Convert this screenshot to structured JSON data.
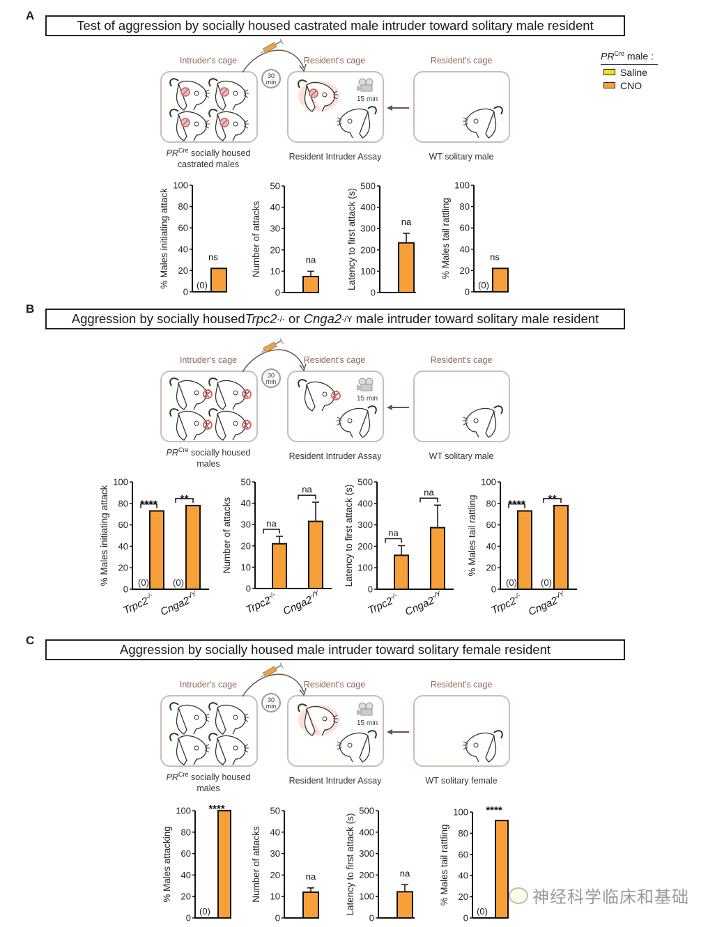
{
  "colors": {
    "saline": "#f5e11a",
    "cno": "#f7a03a",
    "cage_border": "#c9bdb8",
    "cage_label": "#8a6a58",
    "arrow": "#6b5248"
  },
  "legend": {
    "header_italic": "PR",
    "header_sup": "Cre",
    "header_rest": " male :",
    "items": [
      {
        "label": "Saline",
        "color": "#f5e11a"
      },
      {
        "label": "CNO",
        "color": "#f7a03a"
      }
    ]
  },
  "panels": [
    {
      "letter": "A",
      "title": "Test of aggression by socially housed castrated male intruder toward solitary male resident",
      "schematic": {
        "intruder_cage_label": "Intruder's cage",
        "resident_cage_label": "Resident's cage",
        "wt_cage_label": "Resident's cage",
        "timer_value": "30",
        "timer_unit": "min",
        "camera_duration": "15 min",
        "intruder_caption_italic": "PR",
        "intruder_caption_sup": "Cre",
        "intruder_caption_rest": " socially housed",
        "intruder_caption_line2": "castrated males",
        "assay_caption": "Resident Intruder Assay",
        "wt_caption": "WT solitary male"
      }
    },
    {
      "letter": "B",
      "title_parts": [
        "Aggression by socially housed ",
        "Trpc2",
        "-/-",
        " or ",
        "Cnga2",
        "-/Y",
        " male intruder toward solitary male resident"
      ],
      "schematic": {
        "intruder_cage_label": "Intruder's cage",
        "resident_cage_label": "Resident's cage",
        "wt_cage_label": "Resident's cage",
        "timer_value": "30",
        "timer_unit": "min",
        "camera_duration": "15 min",
        "intruder_caption_italic": "PR",
        "intruder_caption_sup": "Cre",
        "intruder_caption_rest": " socially housed",
        "intruder_caption_line2": "males",
        "assay_caption": "Resident Intruder Assay",
        "wt_caption": "WT solitary male"
      }
    },
    {
      "letter": "C",
      "title": "Aggression by socially housed male intruder toward solitary female resident",
      "schematic": {
        "intruder_cage_label": "Intruder's cage",
        "resident_cage_label": "Resident's cage",
        "wt_cage_label": "Resident's cage",
        "timer_value": "30",
        "timer_unit": "min",
        "camera_duration": "15 min",
        "intruder_caption_italic": "PR",
        "intruder_caption_sup": "Cre",
        "intruder_caption_rest": " socially housed",
        "intruder_caption_line2": "males",
        "assay_caption": "Resident Intruder Assay",
        "wt_caption": "WT solitary female"
      }
    }
  ],
  "chart_data": [
    {
      "panel": "A",
      "type": "bar",
      "ylabel": "% Males initiating attack",
      "ylim": [
        0,
        100
      ],
      "yticks": [
        0,
        20,
        40,
        60,
        80,
        100
      ],
      "groups": [
        {
          "category": "",
          "saline": 0,
          "cno": 22,
          "cno_err": null,
          "saline_label": "(0)",
          "sig": "ns",
          "bracket": false
        }
      ]
    },
    {
      "panel": "A",
      "type": "bar",
      "ylabel": "Number of attacks",
      "ylim": [
        0,
        50
      ],
      "yticks": [
        0,
        10,
        20,
        30,
        40,
        50
      ],
      "groups": [
        {
          "category": "",
          "saline": null,
          "cno": 7.5,
          "cno_err": 2.5,
          "saline_label": "",
          "sig": "na",
          "bracket": false
        }
      ]
    },
    {
      "panel": "A",
      "type": "bar",
      "ylabel": "Latency to first attack (s)",
      "ylim": [
        0,
        500
      ],
      "yticks": [
        0,
        100,
        200,
        300,
        400,
        500
      ],
      "groups": [
        {
          "category": "",
          "saline": null,
          "cno": 233,
          "cno_err": 45,
          "saline_label": "",
          "sig": "na",
          "bracket": false
        }
      ]
    },
    {
      "panel": "A",
      "type": "bar",
      "ylabel": "% Males tail rattling",
      "ylim": [
        0,
        100
      ],
      "yticks": [
        0,
        20,
        40,
        60,
        80,
        100
      ],
      "groups": [
        {
          "category": "",
          "saline": 0,
          "cno": 22,
          "cno_err": null,
          "saline_label": "(0)",
          "sig": "ns",
          "bracket": false
        }
      ]
    },
    {
      "panel": "B",
      "type": "bar",
      "ylabel": "% Males initiating attack",
      "ylim": [
        0,
        100
      ],
      "yticks": [
        0,
        20,
        40,
        60,
        80,
        100
      ],
      "groups": [
        {
          "category": "Trpc2",
          "category_sup": "-/-",
          "saline": 0,
          "cno": 73,
          "cno_err": null,
          "saline_label": "(0)",
          "sig": "****",
          "bracket": true
        },
        {
          "category": "Cnga2",
          "category_sup": "-/Y",
          "saline": 0,
          "cno": 78,
          "cno_err": null,
          "saline_label": "(0)",
          "sig": "**",
          "bracket": true
        }
      ]
    },
    {
      "panel": "B",
      "type": "bar",
      "ylabel": "Number of attacks",
      "ylim": [
        0,
        50
      ],
      "yticks": [
        0,
        10,
        20,
        30,
        40,
        50
      ],
      "groups": [
        {
          "category": "Trpc2",
          "category_sup": "-/-",
          "saline": null,
          "cno": 21,
          "cno_err": 3.5,
          "saline_label": "",
          "sig": "na",
          "bracket": true
        },
        {
          "category": "Cnga2",
          "category_sup": "-/Y",
          "saline": null,
          "cno": 31.5,
          "cno_err": 9,
          "saline_label": "",
          "sig": "na",
          "bracket": true
        }
      ]
    },
    {
      "panel": "B",
      "type": "bar",
      "ylabel": "Latency to first attack (s)",
      "ylim": [
        0,
        500
      ],
      "yticks": [
        0,
        100,
        200,
        300,
        400,
        500
      ],
      "groups": [
        {
          "category": "Trpc2",
          "category_sup": "-/-",
          "saline": null,
          "cno": 158,
          "cno_err": 45,
          "saline_label": "",
          "sig": "na",
          "bracket": true
        },
        {
          "category": "Cnga2",
          "category_sup": "-/Y",
          "saline": null,
          "cno": 287,
          "cno_err": 105,
          "saline_label": "",
          "sig": "na",
          "bracket": true
        }
      ]
    },
    {
      "panel": "B",
      "type": "bar",
      "ylabel": "% Males tail rattling",
      "ylim": [
        0,
        100
      ],
      "yticks": [
        0,
        20,
        40,
        60,
        80,
        100
      ],
      "groups": [
        {
          "category": "Trpc2",
          "category_sup": "-/-",
          "saline": 0,
          "cno": 73,
          "cno_err": null,
          "saline_label": "(0)",
          "sig": "****",
          "bracket": true
        },
        {
          "category": "Cnga2",
          "category_sup": "-/Y",
          "saline": 0,
          "cno": 78,
          "cno_err": null,
          "saline_label": "(0)",
          "sig": "**",
          "bracket": true
        }
      ]
    },
    {
      "panel": "C",
      "type": "bar",
      "ylabel": "% Males attacking",
      "ylim": [
        0,
        100
      ],
      "yticks": [
        0,
        20,
        40,
        60,
        80,
        100
      ],
      "groups": [
        {
          "category": "",
          "saline": 0,
          "cno": 100,
          "cno_err": null,
          "saline_label": "(0)",
          "sig": "****",
          "bracket": false
        }
      ]
    },
    {
      "panel": "C",
      "type": "bar",
      "ylabel": "Number of attacks",
      "ylim": [
        0,
        50
      ],
      "yticks": [
        0,
        10,
        20,
        30,
        40,
        50
      ],
      "groups": [
        {
          "category": "",
          "saline": null,
          "cno": 12,
          "cno_err": 2,
          "saline_label": "",
          "sig": "na",
          "bracket": false
        }
      ]
    },
    {
      "panel": "C",
      "type": "bar",
      "ylabel": "Latency to first attack (s)",
      "ylim": [
        0,
        500
      ],
      "yticks": [
        0,
        100,
        200,
        300,
        400,
        500
      ],
      "groups": [
        {
          "category": "",
          "saline": null,
          "cno": 122,
          "cno_err": 33,
          "saline_label": "",
          "sig": "na",
          "bracket": false
        }
      ]
    },
    {
      "panel": "C",
      "type": "bar",
      "ylabel": "% Males tail rattling",
      "ylim": [
        0,
        100
      ],
      "yticks": [
        0,
        20,
        40,
        60,
        80,
        100
      ],
      "groups": [
        {
          "category": "",
          "saline": 0,
          "cno": 92,
          "cno_err": null,
          "saline_label": "(0)",
          "sig": "****",
          "bracket": false
        }
      ]
    }
  ],
  "watermark": "神经科学临床和基础"
}
